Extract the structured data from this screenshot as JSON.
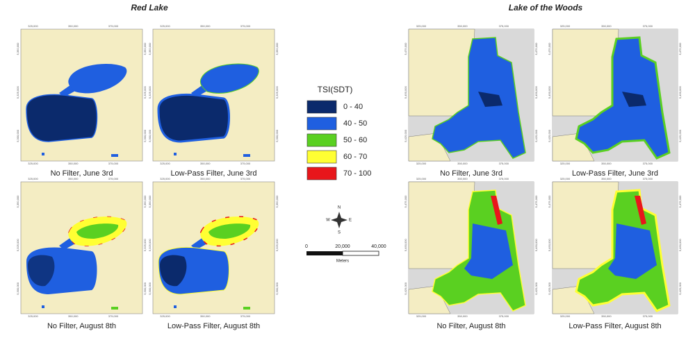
{
  "maps": [
    {
      "title": "Red Lake",
      "x_ticks": [
        "325,000",
        "350,000",
        "375,000"
      ],
      "y_ticks": [
        "5,350,000",
        "5,325,000",
        "5,300,000"
      ],
      "panels": [
        "No Filter, June 3rd",
        "Low-Pass Filter, June 3rd",
        "No Filter, August 8th",
        "Low-Pass Filter, August 8th"
      ]
    },
    {
      "title": "Lake of the Woods",
      "x_ticks": [
        "325,000",
        "350,000",
        "375,000"
      ],
      "y_ticks": [
        "5,475,000",
        "5,450,000",
        "5,425,000"
      ],
      "panels": [
        "No Filter, June 3rd",
        "Low-Pass Filter, June 3rd",
        "No Filter, August 8th",
        "Low-Pass Filter, August 8th"
      ]
    }
  ],
  "legend": {
    "title": "TSI(SDT)",
    "items": [
      {
        "label": "0 - 40",
        "color": "#0b2a6c"
      },
      {
        "label": "40 - 50",
        "color": "#1f5fe0"
      },
      {
        "label": "50 - 60",
        "color": "#5ad021"
      },
      {
        "label": "60 - 70",
        "color": "#ffff33"
      },
      {
        "label": "70 - 100",
        "color": "#e8161b"
      }
    ]
  },
  "compass": {
    "n": "N",
    "e": "E",
    "s": "S",
    "w": "W"
  },
  "scale_bar": {
    "labels": [
      "0",
      "20,000",
      "40,000"
    ],
    "unit": "Meters"
  }
}
